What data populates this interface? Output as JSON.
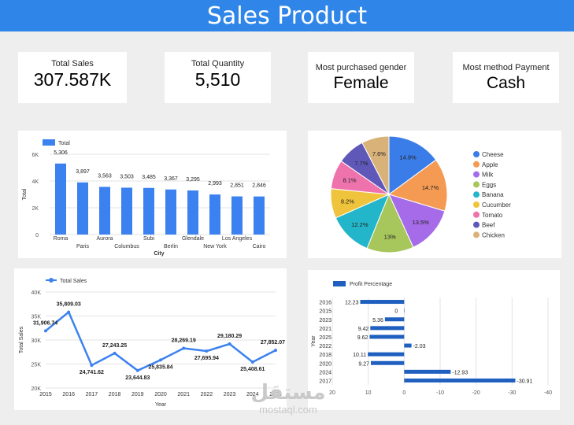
{
  "header": {
    "title": "Sales Product"
  },
  "kpis": [
    {
      "label": "Total Sales",
      "value": "307.587K"
    },
    {
      "label": "Total Quantity",
      "value": "5,510"
    },
    {
      "label": "Most purchased gender",
      "value": "Female"
    },
    {
      "label": "Most method Payment",
      "value": "Cash"
    }
  ],
  "chart_data": [
    {
      "type": "bar",
      "legend": "Total",
      "xlabel": "City",
      "ylabel": "Total",
      "ylim": [
        0,
        6000
      ],
      "yticks": [
        "0",
        "2K",
        "4K",
        "6K"
      ],
      "categories": [
        "Roma",
        "Paris",
        "Aurora",
        "Columbus",
        "Subi",
        "Berlin",
        "Glendale",
        "New York",
        "Los Angeles",
        "Cairo"
      ],
      "values": [
        5306,
        3897,
        3563,
        3503,
        3485,
        3367,
        3295,
        2993,
        2851,
        2846
      ],
      "value_labels": [
        "5,306",
        "3,897",
        "3,563",
        "3,503",
        "3,485",
        "3,367",
        "3,295",
        "2,993",
        "2,851",
        "2,846"
      ],
      "color": "#3b82f0",
      "grid": true,
      "legend_position": "top-left"
    },
    {
      "type": "pie",
      "labels": [
        "Cheese",
        "Apple",
        "Milk",
        "Eggs",
        "Banana",
        "Cucumber",
        "Tomato",
        "Beef",
        "Chicken"
      ],
      "values": [
        14.9,
        14.7,
        13.5,
        13,
        12.2,
        8.2,
        8.1,
        7.7,
        7.6
      ],
      "slice_labels": [
        "14.9%",
        "14.7%",
        "13.5%",
        "13%",
        "12.2%",
        "8.2%",
        "8.1%",
        "7.7%",
        "7.6%"
      ],
      "colors": [
        "#3b7de8",
        "#f59a52",
        "#a66be8",
        "#a7c65c",
        "#23b5c9",
        "#f0c33c",
        "#ee73ad",
        "#5f58b8",
        "#d9b27a"
      ],
      "legend_position": "right"
    },
    {
      "type": "line",
      "legend": "Total Sales",
      "xlabel": "Year",
      "ylabel": "Total Sales",
      "x": [
        "2015",
        "2016",
        "2017",
        "2018",
        "2019",
        "2020",
        "2021",
        "2022",
        "2023",
        "2024",
        "2025"
      ],
      "values": [
        31906.74,
        35809.03,
        24741.62,
        27243.25,
        23644.83,
        25835.84,
        28269.19,
        27695.94,
        29180.29,
        25408.61,
        27852.07
      ],
      "value_labels": [
        "31,906.74",
        "35,809.03",
        "24,741.62",
        "27,243.25",
        "23,644.83",
        "25,835.84",
        "28,269.19",
        "27,695.94",
        "29,180.29",
        "25,408.61",
        "27,852.07"
      ],
      "ylim": [
        20000,
        40000
      ],
      "yticks": [
        "20K",
        "25K",
        "30K",
        "35K",
        "40K"
      ],
      "color": "#3b82f0",
      "grid": true,
      "legend_position": "top-left"
    },
    {
      "type": "bar",
      "orientation": "horizontal",
      "legend": "Profit Percentage",
      "ylabel": "Year",
      "categories": [
        "2016",
        "2015",
        "2023",
        "2021",
        "2025",
        "2022",
        "2018",
        "2020",
        "2024",
        "2017"
      ],
      "values": [
        12.23,
        0,
        5.36,
        9.42,
        9.62,
        -2.03,
        10.11,
        9.27,
        -12.93,
        -30.91
      ],
      "value_labels": [
        "12.23",
        "0",
        "5.36",
        "9.42",
        "9.62",
        "-2.03",
        "10.11",
        "9.27",
        "-12.93",
        "-30.91"
      ],
      "xlim": [
        20,
        -40
      ],
      "xticks": [
        "20",
        "10",
        "0",
        "-10",
        "-20",
        "-30",
        "-40"
      ],
      "color": "#1f5fbf",
      "grid": true,
      "legend_position": "top-left"
    }
  ],
  "watermark": {
    "arabic": "مستقل",
    "latin": "mostaql.com"
  }
}
